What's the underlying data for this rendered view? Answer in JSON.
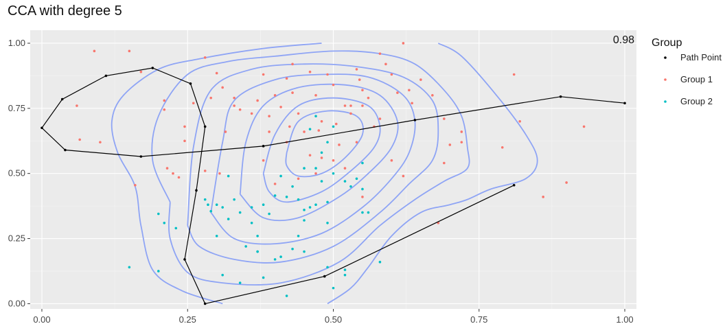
{
  "chart_data": {
    "type": "scatter",
    "title": "CCA with degree 5",
    "xlabel": "",
    "ylabel": "",
    "xlim": [
      -0.02,
      1.02
    ],
    "ylim": [
      -0.02,
      1.05
    ],
    "x_ticks": [
      0.0,
      0.25,
      0.5,
      0.75,
      1.0
    ],
    "x_tick_labels": [
      "0.00",
      "0.25",
      "0.50",
      "0.75",
      "1.00"
    ],
    "y_ticks": [
      0.0,
      0.25,
      0.5,
      0.75,
      1.0
    ],
    "y_tick_labels": [
      "0.00",
      "0.25",
      "0.50",
      "0.75",
      "1.00"
    ],
    "grid": true,
    "legend_placement": "right",
    "corner_label": "0.98",
    "legend": {
      "title": "Group",
      "entries": [
        {
          "name": "Path Point",
          "color": "#000000"
        },
        {
          "name": "Group 1",
          "color": "#F8766D"
        },
        {
          "name": "Group 2",
          "color": "#00BFC4"
        }
      ]
    },
    "contour_color": "#8EA4F5",
    "path_points": [
      [
        1.0,
        0.77
      ],
      [
        0.89,
        0.795
      ],
      [
        0.64,
        0.705
      ],
      [
        0.38,
        0.605
      ],
      [
        0.17,
        0.565
      ],
      [
        0.04,
        0.59
      ],
      [
        0.0,
        0.675
      ],
      [
        0.035,
        0.785
      ],
      [
        0.11,
        0.875
      ],
      [
        0.19,
        0.905
      ],
      [
        0.255,
        0.845
      ],
      [
        0.28,
        0.68
      ],
      [
        0.265,
        0.435
      ],
      [
        0.245,
        0.17
      ],
      [
        0.28,
        0.0
      ],
      [
        0.485,
        0.105
      ],
      [
        0.81,
        0.455
      ]
    ],
    "contours": [
      [
        [
          0.31,
          0.0
        ],
        [
          0.24,
          0.05
        ],
        [
          0.19,
          0.13
        ],
        [
          0.17,
          0.3
        ],
        [
          0.16,
          0.45
        ],
        [
          0.13,
          0.58
        ],
        [
          0.12,
          0.7
        ],
        [
          0.14,
          0.8
        ],
        [
          0.2,
          0.9
        ],
        [
          0.27,
          0.94
        ],
        [
          0.38,
          0.98
        ],
        [
          0.48,
          1.0
        ]
      ],
      [
        [
          0.68,
          1.0
        ],
        [
          0.72,
          0.95
        ],
        [
          0.78,
          0.8
        ],
        [
          0.83,
          0.65
        ],
        [
          0.85,
          0.55
        ],
        [
          0.83,
          0.48
        ],
        [
          0.77,
          0.44
        ],
        [
          0.73,
          0.4
        ],
        [
          0.7,
          0.38
        ],
        [
          0.65,
          0.35
        ],
        [
          0.6,
          0.26
        ],
        [
          0.56,
          0.14
        ],
        [
          0.53,
          0.06
        ],
        [
          0.49,
          0.0
        ]
      ],
      [
        [
          0.22,
          0.39
        ],
        [
          0.19,
          0.55
        ],
        [
          0.2,
          0.72
        ],
        [
          0.25,
          0.88
        ],
        [
          0.32,
          0.93
        ],
        [
          0.4,
          0.95
        ],
        [
          0.5,
          0.97
        ],
        [
          0.58,
          0.96
        ],
        [
          0.64,
          0.92
        ],
        [
          0.69,
          0.82
        ],
        [
          0.72,
          0.72
        ],
        [
          0.73,
          0.6
        ],
        [
          0.73,
          0.52
        ],
        [
          0.69,
          0.47
        ],
        [
          0.64,
          0.4
        ],
        [
          0.58,
          0.3
        ],
        [
          0.51,
          0.16
        ],
        [
          0.41,
          0.08
        ],
        [
          0.31,
          0.08
        ],
        [
          0.25,
          0.12
        ],
        [
          0.22,
          0.25
        ],
        [
          0.22,
          0.39
        ]
      ],
      [
        [
          0.25,
          0.3
        ],
        [
          0.26,
          0.6
        ],
        [
          0.29,
          0.82
        ],
        [
          0.36,
          0.9
        ],
        [
          0.45,
          0.92
        ],
        [
          0.54,
          0.91
        ],
        [
          0.62,
          0.87
        ],
        [
          0.67,
          0.78
        ],
        [
          0.68,
          0.66
        ],
        [
          0.67,
          0.55
        ],
        [
          0.63,
          0.46
        ],
        [
          0.58,
          0.35
        ],
        [
          0.5,
          0.22
        ],
        [
          0.41,
          0.16
        ],
        [
          0.33,
          0.17
        ],
        [
          0.27,
          0.22
        ],
        [
          0.25,
          0.3
        ]
      ],
      [
        [
          0.29,
          0.35
        ],
        [
          0.31,
          0.62
        ],
        [
          0.33,
          0.78
        ],
        [
          0.4,
          0.86
        ],
        [
          0.48,
          0.88
        ],
        [
          0.56,
          0.87
        ],
        [
          0.62,
          0.8
        ],
        [
          0.64,
          0.7
        ],
        [
          0.63,
          0.58
        ],
        [
          0.6,
          0.48
        ],
        [
          0.55,
          0.37
        ],
        [
          0.48,
          0.27
        ],
        [
          0.4,
          0.23
        ],
        [
          0.33,
          0.25
        ],
        [
          0.29,
          0.35
        ]
      ],
      [
        [
          0.34,
          0.42
        ],
        [
          0.35,
          0.62
        ],
        [
          0.38,
          0.76
        ],
        [
          0.44,
          0.83
        ],
        [
          0.52,
          0.84
        ],
        [
          0.58,
          0.8
        ],
        [
          0.61,
          0.7
        ],
        [
          0.6,
          0.6
        ],
        [
          0.56,
          0.5
        ],
        [
          0.51,
          0.41
        ],
        [
          0.44,
          0.33
        ],
        [
          0.38,
          0.33
        ],
        [
          0.34,
          0.42
        ]
      ],
      [
        [
          0.38,
          0.5
        ],
        [
          0.4,
          0.65
        ],
        [
          0.44,
          0.76
        ],
        [
          0.5,
          0.79
        ],
        [
          0.56,
          0.76
        ],
        [
          0.58,
          0.68
        ],
        [
          0.57,
          0.6
        ],
        [
          0.53,
          0.51
        ],
        [
          0.48,
          0.43
        ],
        [
          0.42,
          0.39
        ],
        [
          0.39,
          0.43
        ],
        [
          0.38,
          0.5
        ]
      ],
      [
        [
          0.42,
          0.58
        ],
        [
          0.44,
          0.7
        ],
        [
          0.49,
          0.74
        ],
        [
          0.54,
          0.72
        ],
        [
          0.55,
          0.65
        ],
        [
          0.52,
          0.56
        ],
        [
          0.48,
          0.5
        ],
        [
          0.44,
          0.49
        ],
        [
          0.42,
          0.53
        ],
        [
          0.42,
          0.58
        ]
      ]
    ],
    "group1_points": [
      [
        0.09,
        0.97
      ],
      [
        0.15,
        0.97
      ],
      [
        0.17,
        0.89
      ],
      [
        0.06,
        0.76
      ],
      [
        0.065,
        0.63
      ],
      [
        0.1,
        0.62
      ],
      [
        0.16,
        0.455
      ],
      [
        0.21,
        0.78
      ],
      [
        0.21,
        0.745
      ],
      [
        0.245,
        0.68
      ],
      [
        0.245,
        0.625
      ],
      [
        0.215,
        0.52
      ],
      [
        0.225,
        0.5
      ],
      [
        0.235,
        0.485
      ],
      [
        0.28,
        0.945
      ],
      [
        0.3,
        0.885
      ],
      [
        0.31,
        0.83
      ],
      [
        0.29,
        0.79
      ],
      [
        0.315,
        0.66
      ],
      [
        0.305,
        0.5
      ],
      [
        0.28,
        0.51
      ],
      [
        0.26,
        0.77
      ],
      [
        0.33,
        0.79
      ],
      [
        0.33,
        0.76
      ],
      [
        0.34,
        0.745
      ],
      [
        0.36,
        0.73
      ],
      [
        0.37,
        0.78
      ],
      [
        0.38,
        0.88
      ],
      [
        0.39,
        0.72
      ],
      [
        0.4,
        0.8
      ],
      [
        0.41,
        0.755
      ],
      [
        0.42,
        0.865
      ],
      [
        0.43,
        0.81
      ],
      [
        0.425,
        0.68
      ],
      [
        0.44,
        0.73
      ],
      [
        0.43,
        0.92
      ],
      [
        0.46,
        0.89
      ],
      [
        0.47,
        0.8
      ],
      [
        0.475,
        0.665
      ],
      [
        0.48,
        0.7
      ],
      [
        0.49,
        0.88
      ],
      [
        0.5,
        0.84
      ],
      [
        0.505,
        0.69
      ],
      [
        0.51,
        0.61
      ],
      [
        0.52,
        0.76
      ],
      [
        0.53,
        0.76
      ],
      [
        0.53,
        0.73
      ],
      [
        0.54,
        0.9
      ],
      [
        0.545,
        0.86
      ],
      [
        0.55,
        0.82
      ],
      [
        0.55,
        0.76
      ],
      [
        0.56,
        0.79
      ],
      [
        0.57,
        0.68
      ],
      [
        0.58,
        0.96
      ],
      [
        0.59,
        0.92
      ],
      [
        0.6,
        0.88
      ],
      [
        0.61,
        0.81
      ],
      [
        0.62,
        1.0
      ],
      [
        0.63,
        0.82
      ],
      [
        0.635,
        0.77
      ],
      [
        0.65,
        0.86
      ],
      [
        0.67,
        0.8
      ],
      [
        0.69,
        0.71
      ],
      [
        0.7,
        0.61
      ],
      [
        0.69,
        0.54
      ],
      [
        0.72,
        0.66
      ],
      [
        0.72,
        0.62
      ],
      [
        0.68,
        0.31
      ],
      [
        0.79,
        0.6
      ],
      [
        0.81,
        0.88
      ],
      [
        0.82,
        0.7
      ],
      [
        0.86,
        0.41
      ],
      [
        0.9,
        0.465
      ],
      [
        0.93,
        0.68
      ],
      [
        0.54,
        0.62
      ],
      [
        0.48,
        0.56
      ],
      [
        0.5,
        0.55
      ],
      [
        0.46,
        0.57
      ],
      [
        0.52,
        0.52
      ],
      [
        0.47,
        0.5
      ],
      [
        0.6,
        0.55
      ],
      [
        0.62,
        0.49
      ],
      [
        0.38,
        0.55
      ],
      [
        0.4,
        0.46
      ],
      [
        0.39,
        0.66
      ],
      [
        0.45,
        0.66
      ],
      [
        0.42,
        0.62
      ],
      [
        0.44,
        0.48
      ],
      [
        0.58,
        0.71
      ],
      [
        0.55,
        0.41
      ]
    ],
    "group2_points": [
      [
        0.15,
        0.14
      ],
      [
        0.2,
        0.345
      ],
      [
        0.2,
        0.125
      ],
      [
        0.21,
        0.31
      ],
      [
        0.23,
        0.29
      ],
      [
        0.28,
        0.4
      ],
      [
        0.285,
        0.38
      ],
      [
        0.29,
        0.355
      ],
      [
        0.3,
        0.38
      ],
      [
        0.31,
        0.37
      ],
      [
        0.3,
        0.26
      ],
      [
        0.32,
        0.325
      ],
      [
        0.33,
        0.4
      ],
      [
        0.34,
        0.35
      ],
      [
        0.32,
        0.49
      ],
      [
        0.36,
        0.37
      ],
      [
        0.36,
        0.31
      ],
      [
        0.37,
        0.26
      ],
      [
        0.38,
        0.38
      ],
      [
        0.39,
        0.345
      ],
      [
        0.4,
        0.415
      ],
      [
        0.41,
        0.49
      ],
      [
        0.42,
        0.41
      ],
      [
        0.43,
        0.45
      ],
      [
        0.44,
        0.4
      ],
      [
        0.45,
        0.36
      ],
      [
        0.45,
        0.32
      ],
      [
        0.46,
        0.37
      ],
      [
        0.47,
        0.38
      ],
      [
        0.48,
        0.47
      ],
      [
        0.49,
        0.39
      ],
      [
        0.49,
        0.31
      ],
      [
        0.45,
        0.52
      ],
      [
        0.47,
        0.52
      ],
      [
        0.48,
        0.58
      ],
      [
        0.49,
        0.62
      ],
      [
        0.5,
        0.5
      ],
      [
        0.52,
        0.47
      ],
      [
        0.53,
        0.45
      ],
      [
        0.54,
        0.48
      ],
      [
        0.55,
        0.44
      ],
      [
        0.56,
        0.35
      ],
      [
        0.55,
        0.35
      ],
      [
        0.47,
        0.72
      ],
      [
        0.46,
        0.67
      ],
      [
        0.5,
        0.68
      ],
      [
        0.45,
        0.2
      ],
      [
        0.43,
        0.21
      ],
      [
        0.41,
        0.18
      ],
      [
        0.4,
        0.17
      ],
      [
        0.44,
        0.26
      ],
      [
        0.37,
        0.2
      ],
      [
        0.38,
        0.1
      ],
      [
        0.35,
        0.22
      ],
      [
        0.34,
        0.08
      ],
      [
        0.31,
        0.11
      ],
      [
        0.49,
        0.14
      ],
      [
        0.5,
        0.06
      ],
      [
        0.42,
        0.03
      ],
      [
        0.52,
        0.11
      ],
      [
        0.52,
        0.13
      ],
      [
        0.58,
        0.16
      ],
      [
        0.37,
        0.2
      ],
      [
        0.55,
        0.54
      ]
    ]
  }
}
